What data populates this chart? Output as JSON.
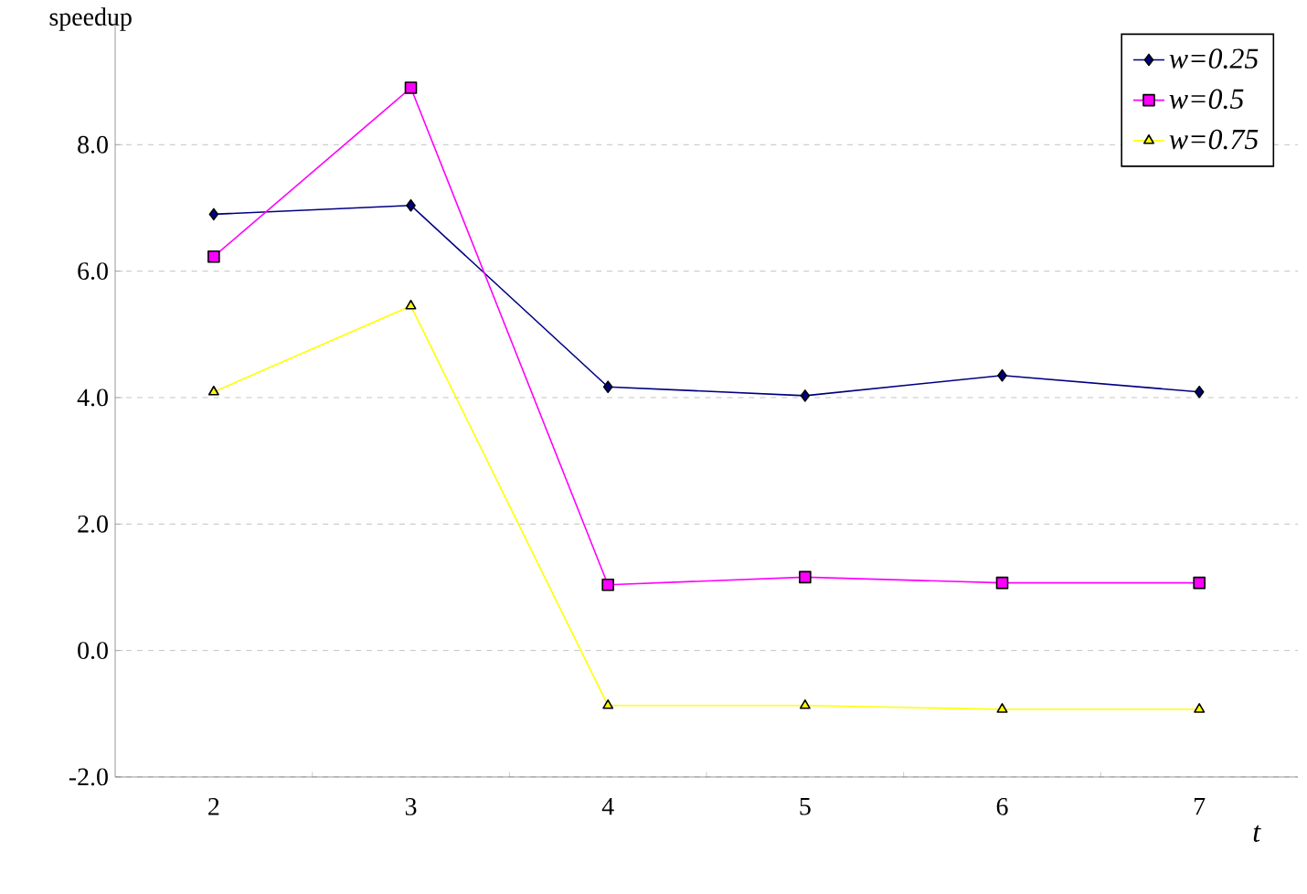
{
  "chart_data": {
    "type": "line",
    "xlabel": "t",
    "ylabel": "speedup",
    "categories": [
      "2",
      "3",
      "4",
      "5",
      "6",
      "7"
    ],
    "series": [
      {
        "name": "w=0.25",
        "color": "#000080",
        "marker": "diamond",
        "values": [
          6.9,
          7.04,
          4.17,
          4.03,
          4.35,
          4.09
        ]
      },
      {
        "name": "w=0.5",
        "color": "#ff00ff",
        "marker": "square",
        "values": [
          6.23,
          8.9,
          1.04,
          1.16,
          1.07,
          1.07
        ]
      },
      {
        "name": "w=0.75",
        "color": "#ffff00",
        "marker": "triangle",
        "values": [
          4.09,
          5.45,
          -0.87,
          -0.87,
          -0.93,
          -0.93
        ]
      }
    ],
    "ylim": [
      -2,
      10
    ],
    "yticks": [
      {
        "value": -2,
        "label": "-2.0"
      },
      {
        "value": 0,
        "label": "0.0"
      },
      {
        "value": 2,
        "label": "2.0"
      },
      {
        "value": 4,
        "label": "4.0"
      },
      {
        "value": 6,
        "label": "6.0"
      },
      {
        "value": 8,
        "label": "8.0"
      }
    ],
    "grid": "y",
    "line_style": "solid",
    "legend": "top right"
  }
}
